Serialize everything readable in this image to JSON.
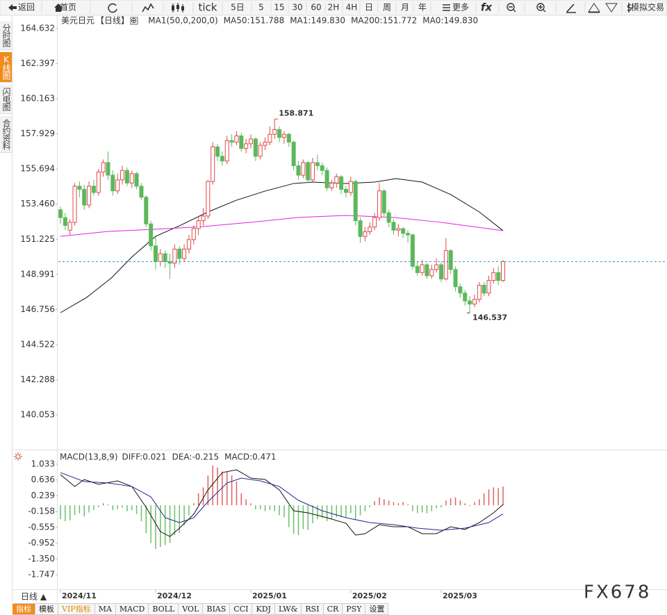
{
  "toolbar": [
    "返回",
    "首页",
    "tick",
    "5日",
    "5",
    "15",
    "30",
    "60",
    "2H",
    "4H",
    "日",
    "周",
    "月",
    "年",
    "更多",
    "fx",
    "模拟交易"
  ],
  "side_tabs": [
    "分时图",
    "K线图",
    "闪电图",
    "合约资料"
  ],
  "chart_data": [
    {
      "type": "candlestick",
      "title": "美元日元",
      "period": "【日线】",
      "add_icon": "⊕",
      "indicator_labels": [
        {
          "text": "MA1(50,0,200,0)",
          "color": "#222222"
        },
        {
          "text": "MA50:151.788",
          "color": "#222222"
        },
        {
          "text": "MA1:149.830",
          "color": "#1f2a8c"
        },
        {
          "text": "MA200:151.772",
          "color": "#e020e0"
        },
        {
          "text": "MA0:149.830",
          "color": "#f08c1e"
        }
      ],
      "up_color": "#e04848",
      "down_color": "#5cb85c",
      "last_price_color": "#3399cc",
      "ylim": [
        138.15,
        165.56
      ],
      "yticks": [
        164.632,
        162.397,
        160.163,
        157.929,
        155.694,
        {
          "value": 153.46,
          "label": "153.460"
        },
        151.225,
        148.991,
        146.756,
        144.522,
        142.288,
        140.053
      ],
      "xticks": [
        {
          "value": 0,
          "label": "2024/11"
        },
        {
          "value": 20,
          "label": "2024/12"
        },
        {
          "value": 40,
          "label": "2025/01"
        },
        {
          "value": 61,
          "label": "2025/02"
        },
        {
          "value": 80,
          "label": "2025/03"
        }
      ],
      "max_index": 45,
      "min_index": 86,
      "ohlc": [
        [
          153.1,
          153.3,
          152.2,
          152.6
        ],
        [
          152.6,
          152.9,
          151.8,
          152.1
        ],
        [
          151.8,
          152.5,
          151.5,
          152.3
        ],
        [
          152.3,
          154.8,
          152.1,
          154.6
        ],
        [
          154.6,
          154.9,
          153.9,
          154.4
        ],
        [
          154.4,
          154.7,
          153.1,
          153.4
        ],
        [
          153.4,
          154.9,
          153.2,
          154.6
        ],
        [
          154.6,
          155.0,
          154.0,
          154.2
        ],
        [
          154.2,
          155.7,
          154.0,
          155.5
        ],
        [
          155.5,
          156.3,
          155.2,
          156.1
        ],
        [
          156.1,
          156.8,
          155.0,
          155.3
        ],
        [
          155.3,
          155.6,
          154.0,
          154.3
        ],
        [
          154.3,
          155.4,
          154.1,
          155.0
        ],
        [
          155.0,
          155.9,
          154.7,
          155.6
        ],
        [
          155.6,
          155.8,
          154.6,
          154.8
        ],
        [
          154.8,
          155.6,
          154.5,
          155.4
        ],
        [
          155.4,
          155.5,
          154.4,
          154.6
        ],
        [
          154.6,
          154.8,
          153.7,
          153.9
        ],
        [
          153.9,
          154.0,
          152.0,
          152.2
        ],
        [
          152.2,
          152.4,
          150.5,
          150.8
        ],
        [
          150.8,
          151.4,
          149.3,
          149.8
        ],
        [
          149.8,
          150.6,
          149.5,
          150.3
        ],
        [
          150.3,
          150.5,
          149.4,
          149.8
        ],
        [
          149.8,
          150.3,
          148.7,
          149.7
        ],
        [
          149.7,
          150.9,
          149.4,
          150.6
        ],
        [
          150.6,
          150.8,
          149.6,
          150.0
        ],
        [
          150.0,
          150.9,
          149.8,
          150.6
        ],
        [
          150.6,
          151.5,
          150.3,
          151.2
        ],
        [
          151.2,
          152.1,
          150.9,
          151.9
        ],
        [
          151.9,
          152.6,
          151.5,
          152.4
        ],
        [
          152.4,
          153.2,
          152.1,
          152.7
        ],
        [
          152.7,
          155.0,
          152.5,
          154.9
        ],
        [
          154.9,
          157.4,
          154.7,
          157.1
        ],
        [
          157.1,
          157.3,
          156.2,
          156.5
        ],
        [
          156.5,
          156.8,
          155.9,
          156.2
        ],
        [
          156.2,
          157.8,
          156.0,
          157.5
        ],
        [
          157.5,
          157.9,
          157.1,
          157.4
        ],
        [
          157.4,
          158.1,
          157.2,
          157.8
        ],
        [
          157.8,
          158.0,
          156.8,
          157.0
        ],
        [
          157.0,
          157.6,
          156.7,
          157.3
        ],
        [
          157.3,
          157.9,
          157.0,
          157.6
        ],
        [
          157.6,
          157.7,
          156.2,
          156.5
        ],
        [
          156.5,
          157.4,
          156.3,
          157.2
        ],
        [
          157.2,
          157.7,
          156.9,
          157.4
        ],
        [
          157.4,
          158.4,
          157.2,
          157.9
        ],
        [
          157.9,
          158.871,
          157.6,
          158.2
        ],
        [
          158.2,
          158.4,
          157.4,
          157.7
        ],
        [
          157.7,
          158.1,
          157.3,
          157.9
        ],
        [
          157.9,
          158.0,
          157.1,
          157.4
        ],
        [
          157.4,
          157.5,
          155.6,
          155.9
        ],
        [
          155.9,
          156.2,
          155.0,
          155.3
        ],
        [
          155.3,
          156.3,
          155.1,
          156.1
        ],
        [
          156.1,
          156.2,
          154.8,
          155.0
        ],
        [
          155.0,
          156.4,
          154.9,
          156.1
        ],
        [
          156.1,
          156.6,
          155.6,
          155.9
        ],
        [
          155.9,
          156.1,
          155.3,
          155.6
        ],
        [
          155.6,
          155.8,
          154.3,
          154.5
        ],
        [
          154.5,
          155.0,
          154.3,
          154.8
        ],
        [
          154.8,
          155.4,
          154.5,
          155.2
        ],
        [
          155.2,
          155.3,
          154.1,
          154.4
        ],
        [
          154.4,
          154.6,
          153.9,
          154.2
        ],
        [
          154.2,
          155.2,
          154.0,
          154.9
        ],
        [
          154.9,
          155.0,
          152.1,
          152.4
        ],
        [
          152.4,
          152.6,
          151.0,
          151.4
        ],
        [
          151.4,
          152.0,
          151.1,
          151.7
        ],
        [
          151.7,
          152.3,
          151.5,
          152.0
        ],
        [
          152.0,
          152.9,
          151.8,
          152.6
        ],
        [
          152.6,
          154.8,
          152.4,
          154.3
        ],
        [
          154.3,
          154.4,
          152.7,
          152.9
        ],
        [
          152.9,
          153.1,
          152.0,
          152.3
        ],
        [
          152.3,
          152.5,
          151.5,
          151.8
        ],
        [
          151.8,
          152.2,
          151.4,
          151.9
        ],
        [
          151.9,
          152.0,
          151.3,
          151.6
        ],
        [
          151.6,
          151.8,
          151.0,
          151.5
        ],
        [
          151.5,
          151.6,
          149.3,
          149.5
        ],
        [
          149.5,
          149.8,
          148.9,
          149.1
        ],
        [
          149.1,
          149.9,
          148.9,
          149.6
        ],
        [
          149.6,
          149.7,
          148.7,
          148.9
        ],
        [
          148.9,
          149.6,
          148.7,
          149.3
        ],
        [
          149.3,
          150.0,
          149.1,
          149.6
        ],
        [
          149.6,
          149.8,
          148.5,
          148.7
        ],
        [
          148.7,
          151.3,
          148.6,
          150.5
        ],
        [
          150.5,
          150.6,
          149.0,
          149.3
        ],
        [
          149.3,
          149.5,
          147.9,
          148.2
        ],
        [
          148.2,
          148.4,
          147.5,
          147.8
        ],
        [
          147.8,
          148.0,
          147.0,
          147.3
        ],
        [
          147.3,
          147.6,
          146.537,
          147.1
        ],
        [
          147.1,
          147.7,
          146.9,
          147.4
        ],
        [
          147.4,
          148.5,
          147.2,
          148.3
        ],
        [
          148.3,
          148.5,
          147.6,
          147.8
        ],
        [
          147.8,
          148.9,
          147.6,
          148.6
        ],
        [
          148.6,
          149.4,
          148.4,
          149.1
        ],
        [
          149.1,
          149.5,
          148.3,
          148.6
        ],
        [
          148.6,
          149.9,
          148.5,
          149.8
        ]
      ],
      "series": [
        {
          "color": "#111111",
          "x": [
            0,
            5.5,
            10.7,
            15,
            20,
            25,
            31,
            37,
            43,
            49,
            53,
            60,
            66,
            70.5,
            76,
            82,
            88,
            93
          ],
          "values": [
            146.55,
            147.52,
            148.76,
            150.09,
            151.41,
            152.08,
            152.96,
            153.71,
            154.29,
            154.77,
            154.86,
            154.77,
            154.86,
            155.08,
            154.86,
            154.07,
            152.96,
            151.77
          ]
        },
        {
          "color": "#e020e0",
          "x": [
            0,
            10,
            20,
            30,
            40,
            50,
            60,
            70,
            80,
            93
          ],
          "values": [
            151.41,
            151.72,
            151.86,
            152.03,
            152.3,
            152.61,
            152.74,
            152.61,
            152.3,
            151.77
          ]
        }
      ]
    },
    {
      "type": "macd",
      "title": "MACD(13,8,9)",
      "legend": [
        {
          "text": "DIFF:0.021",
          "color": "#222222"
        },
        {
          "text": "DEA:-0.215",
          "color": "#1f2a8c"
        },
        {
          "text": "MACD:0.471",
          "color": "#e020e0"
        }
      ],
      "ylim": [
        -2.061,
        1.348
      ],
      "yticks": [
        1.033,
        0.636,
        0.239,
        -0.158,
        -0.555,
        -0.952,
        {
          "value": -1.35,
          "label": "-1.350"
        },
        -1.747
      ],
      "bars": {
        "up_color": "#e06060",
        "down_color": "#6cbf6c",
        "values": [
          -0.35,
          -0.4,
          -0.38,
          -0.25,
          -0.2,
          -0.28,
          -0.18,
          -0.12,
          -0.05,
          0.05,
          0.02,
          -0.12,
          -0.1,
          -0.06,
          -0.15,
          -0.12,
          -0.22,
          -0.4,
          -0.7,
          -0.95,
          -1.1,
          -1.05,
          -1.0,
          -0.95,
          -0.75,
          -0.7,
          -0.5,
          -0.25,
          0.05,
          0.3,
          0.45,
          0.75,
          1.0,
          0.95,
          0.85,
          0.85,
          0.75,
          0.6,
          0.3,
          0.15,
          0.05,
          -0.1,
          -0.1,
          -0.15,
          -0.12,
          -0.15,
          -0.25,
          -0.3,
          -0.55,
          -0.72,
          -0.75,
          -0.6,
          -0.62,
          -0.45,
          -0.35,
          -0.32,
          -0.4,
          -0.35,
          -0.3,
          -0.3,
          -0.3,
          -0.2,
          -0.35,
          -0.25,
          -0.15,
          -0.05,
          0.1,
          0.2,
          0.15,
          0.12,
          0.08,
          0.05,
          0.08,
          0.02,
          -0.15,
          -0.2,
          -0.18,
          -0.2,
          -0.15,
          -0.08,
          -0.05,
          0.12,
          0.18,
          0.2,
          0.12,
          0.05,
          -0.02,
          0.08,
          0.15,
          0.3,
          0.4,
          0.45,
          0.43,
          0.471
        ]
      },
      "series": [
        {
          "color": "#111111",
          "x": [
            0,
            3,
            5,
            8,
            12,
            15,
            18,
            21,
            23,
            25,
            28,
            31,
            34,
            37,
            40,
            43,
            46,
            49,
            52,
            56,
            60,
            62,
            64,
            67,
            70,
            73,
            76,
            79,
            82,
            85,
            88,
            91,
            93
          ],
          "values": [
            0.771,
            0.473,
            0.648,
            0.526,
            0.613,
            0.473,
            -0.051,
            -0.663,
            -0.785,
            -0.575,
            -0.226,
            0.386,
            0.823,
            0.893,
            0.683,
            0.648,
            0.386,
            -0.138,
            -0.191,
            -0.313,
            -0.453,
            -0.75,
            -0.715,
            -0.488,
            -0.54,
            -0.54,
            -0.715,
            -0.715,
            -0.54,
            -0.61,
            -0.436,
            -0.191,
            0.021
          ]
        },
        {
          "color": "#1f2a8c",
          "x": [
            0,
            5,
            10,
            15,
            19,
            22,
            25,
            28,
            31,
            35,
            38,
            42,
            46,
            50,
            55,
            60,
            65,
            70,
            75,
            80,
            85,
            90,
            93
          ],
          "values": [
            0.823,
            0.596,
            0.561,
            0.473,
            0.211,
            -0.313,
            -0.436,
            -0.313,
            0.089,
            0.561,
            0.683,
            0.613,
            0.473,
            0.124,
            -0.138,
            -0.313,
            -0.436,
            -0.488,
            -0.575,
            -0.628,
            -0.575,
            -0.436,
            -0.215
          ]
        }
      ]
    }
  ],
  "bottom": {
    "period": "日线 ▲",
    "tabs": [
      "指标",
      "模板",
      "VIP指标",
      "MA",
      "MACD",
      "BOLL",
      "VOL",
      "BIAS",
      "CCI",
      "KDJ",
      "LW&",
      "RSI",
      "CR",
      "PSY",
      "设置"
    ]
  },
  "watermark": "FX678"
}
